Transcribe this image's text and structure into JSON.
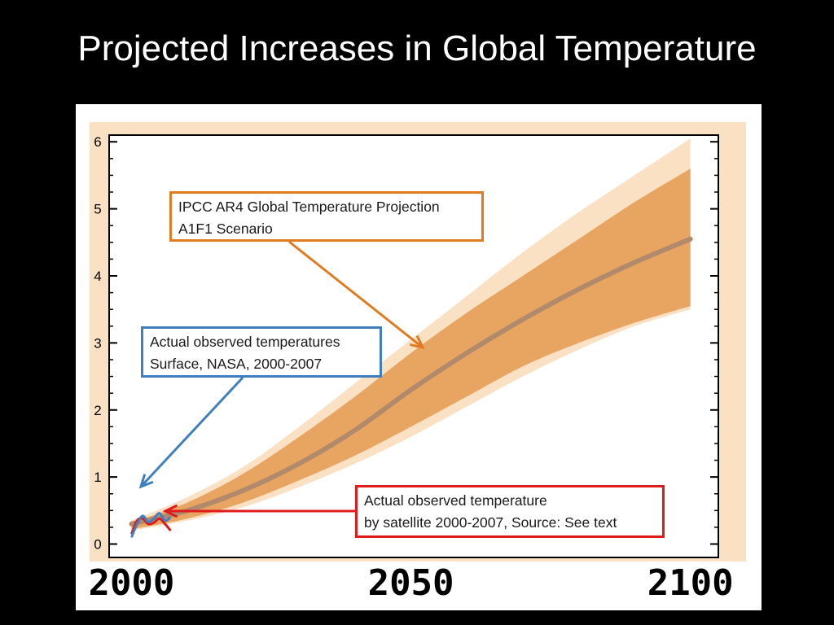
{
  "slide": {
    "title": "Projected Increases in Global Temperature"
  },
  "colors": {
    "background": "#000000",
    "outer_band": "#fbe1c4",
    "inner_band": "#e8a562",
    "mean_line": "#b08a6a",
    "ipcc_accent": "#e07b1f",
    "nasa_accent": "#3f7fbf",
    "satellite_accent": "#e01b1b"
  },
  "callouts": {
    "ipcc": {
      "line1": "IPCC AR4 Global Temperature Projection",
      "line2": "A1F1 Scenario"
    },
    "nasa": {
      "line1": "Actual observed temperatures",
      "line2": "Surface, NASA, 2000-2007"
    },
    "satellite": {
      "line1": "Actual observed temperature",
      "line2": "by satellite 2000-2007, Source: See text"
    }
  },
  "chart_data": {
    "type": "area",
    "title": "",
    "xlabel": "",
    "ylabel": "",
    "xlim": [
      1996,
      2105
    ],
    "ylim": [
      -0.2,
      6.1
    ],
    "yticks": [
      0,
      1,
      2,
      3,
      4,
      5,
      6
    ],
    "xtick_labels": [
      "2000",
      "2050",
      "2100"
    ],
    "xtick_values": [
      2000,
      2050,
      2100
    ],
    "series": [
      {
        "role": "outer-range",
        "x": [
          2000,
          2010,
          2020,
          2030,
          2040,
          2050,
          2060,
          2070,
          2080,
          2090,
          2100
        ],
        "upper": [
          0.35,
          0.7,
          1.15,
          1.75,
          2.4,
          3.05,
          3.7,
          4.35,
          4.95,
          5.5,
          6.05
        ],
        "lower": [
          0.2,
          0.35,
          0.55,
          0.85,
          1.2,
          1.6,
          2.05,
          2.5,
          2.9,
          3.25,
          3.5
        ]
      },
      {
        "role": "inner-range",
        "x": [
          2000,
          2010,
          2020,
          2030,
          2040,
          2050,
          2060,
          2070,
          2080,
          2090,
          2100
        ],
        "upper": [
          0.32,
          0.62,
          1.05,
          1.6,
          2.2,
          2.85,
          3.45,
          4.0,
          4.55,
          5.1,
          5.6
        ],
        "lower": [
          0.22,
          0.38,
          0.62,
          0.95,
          1.32,
          1.75,
          2.2,
          2.65,
          3.0,
          3.3,
          3.55
        ]
      },
      {
        "role": "mean",
        "x": [
          2000,
          2010,
          2020,
          2030,
          2040,
          2050,
          2060,
          2070,
          2080,
          2090,
          2100
        ],
        "values": [
          0.3,
          0.5,
          0.8,
          1.2,
          1.7,
          2.3,
          2.85,
          3.35,
          3.8,
          4.2,
          4.55
        ]
      },
      {
        "role": "observed-nasa",
        "x": [
          2000,
          2001,
          2002,
          2003,
          2004,
          2005,
          2006,
          2007
        ],
        "values": [
          0.1,
          0.3,
          0.42,
          0.33,
          0.38,
          0.46,
          0.35,
          0.4
        ]
      },
      {
        "role": "observed-satellite",
        "x": [
          2000,
          2001,
          2002,
          2003,
          2004,
          2005,
          2006,
          2007
        ],
        "values": [
          0.15,
          0.35,
          0.38,
          0.3,
          0.32,
          0.38,
          0.3,
          0.2
        ]
      }
    ],
    "grid": false
  }
}
